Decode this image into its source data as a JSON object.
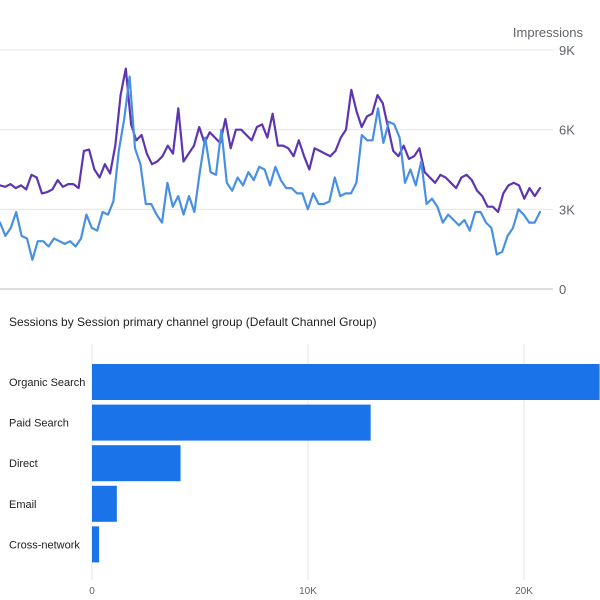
{
  "chart_data": [
    {
      "type": "line",
      "ylabel": "Impressions",
      "yticks": [
        "0",
        "3K",
        "6K",
        "9K"
      ],
      "ylim": [
        0,
        9000
      ],
      "grid": true,
      "series": [
        {
          "color": "#5e35b1",
          "values": [
            3900,
            3850,
            3950,
            3800,
            3900,
            3750,
            4300,
            4200,
            3600,
            3650,
            3750,
            4100,
            3850,
            3950,
            3950,
            3800,
            5200,
            5250,
            4500,
            4200,
            4700,
            4350,
            5400,
            7300,
            8300,
            6200,
            5600,
            5800,
            5100,
            4700,
            4800,
            5000,
            5400,
            5100,
            6800,
            4800,
            5100,
            5400,
            6100,
            5500,
            5900,
            5700,
            5500,
            6400,
            5300,
            6000,
            6000,
            5800,
            5600,
            6100,
            6200,
            5700,
            6600,
            5400,
            5400,
            5300,
            5000,
            5600,
            5000,
            4500,
            5300,
            5200,
            5100,
            5000,
            5200,
            5700,
            6000,
            7500,
            6700,
            6100,
            6500,
            6600,
            7300,
            7000,
            6100,
            5200,
            5000,
            5400,
            4900,
            5000,
            5300,
            4400,
            4200,
            4000,
            4300,
            4200,
            4000,
            3800,
            4200,
            4300,
            4100,
            3700,
            3500,
            3100,
            3100,
            2900,
            3600,
            3900,
            4000,
            3900,
            3400,
            3800,
            3500,
            3800
          ]
        },
        {
          "color": "#4a90e2",
          "values": [
            2500,
            2000,
            2300,
            2900,
            2000,
            1900,
            1100,
            1800,
            1800,
            1600,
            1900,
            1800,
            1700,
            1800,
            1600,
            1900,
            2800,
            2300,
            2200,
            2900,
            2800,
            3300,
            5200,
            6400,
            8000,
            5300,
            4700,
            3200,
            3200,
            2800,
            2500,
            4000,
            3100,
            3500,
            2800,
            3500,
            2900,
            4400,
            5700,
            4400,
            4300,
            6000,
            4000,
            3700,
            4200,
            3900,
            4400,
            4100,
            4600,
            4500,
            3900,
            4600,
            4100,
            3800,
            3800,
            3600,
            3600,
            3000,
            3600,
            3200,
            3200,
            3300,
            4200,
            3500,
            3600,
            3600,
            4000,
            5800,
            5600,
            5600,
            6800,
            5500,
            6300,
            6200,
            5700,
            4000,
            4500,
            3900,
            4800,
            3200,
            3400,
            3100,
            2500,
            2800,
            2600,
            2400,
            2600,
            2200,
            2900,
            2900,
            2500,
            2300,
            1300,
            1400,
            2000,
            2300,
            3000,
            2800,
            2500,
            2500,
            2900
          ]
        }
      ]
    },
    {
      "type": "bar",
      "orientation": "horizontal",
      "title": "Sessions by Session primary channel group (Default Channel Group)",
      "categories": [
        "Organic Search",
        "Paid Search",
        "Direct",
        "Email",
        "Cross-network"
      ],
      "values": [
        23500,
        12900,
        4100,
        1150,
        330
      ],
      "xticks": [
        "0",
        "10K",
        "20K"
      ],
      "xlim": [
        0,
        23500
      ],
      "color": "#1a73e8",
      "grid": true
    }
  ]
}
